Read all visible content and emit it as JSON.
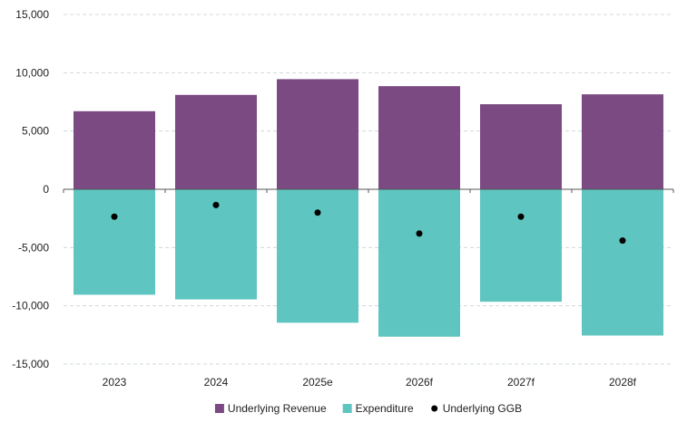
{
  "chart_data": {
    "type": "bar",
    "title": "",
    "xlabel": "",
    "ylabel": "",
    "categories": [
      "2023",
      "2024",
      "2025e",
      "2026f",
      "2027f",
      "2028f"
    ],
    "ylim": [
      -15000,
      15000
    ],
    "yticks": [
      15000,
      10000,
      5000,
      0,
      -5000,
      -10000,
      -15000
    ],
    "ytick_labels": [
      "15,000",
      "10,000",
      "5,000",
      "0",
      "-5,000",
      "-10,000",
      "-15,000"
    ],
    "grid": true,
    "legend_position": "bottom-center",
    "series": [
      {
        "name": "Underlying Revenue",
        "kind": "bar",
        "color": "#7b4a82",
        "values": [
          6700,
          8100,
          9450,
          8850,
          7300,
          8150
        ]
      },
      {
        "name": "Expenditure",
        "kind": "bar",
        "color": "#5ec5c0",
        "values": [
          -9050,
          -9450,
          -11450,
          -12650,
          -9650,
          -12550
        ]
      },
      {
        "name": "Underlying GGB",
        "kind": "scatter",
        "color": "#000000",
        "values": [
          -2350,
          -1350,
          -2000,
          -3800,
          -2350,
          -4400
        ]
      }
    ]
  }
}
